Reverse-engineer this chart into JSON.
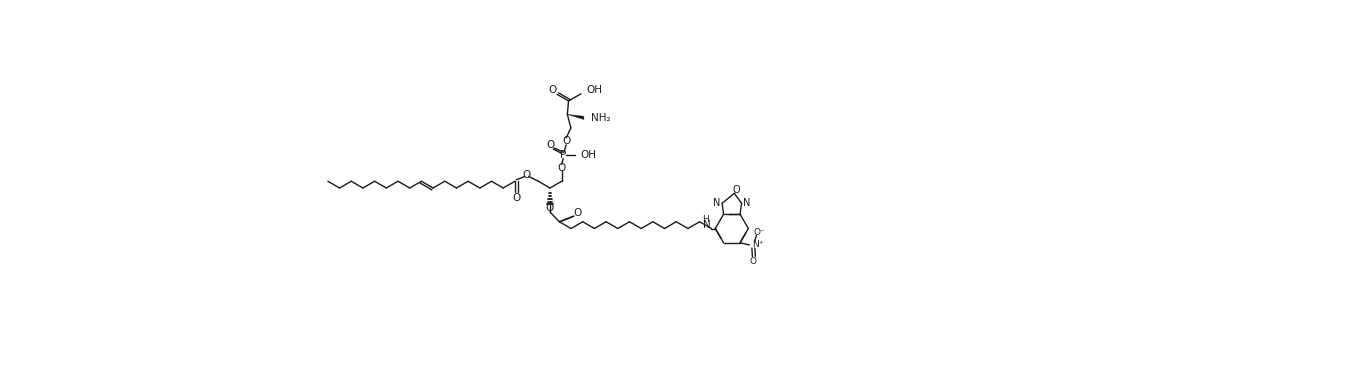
{
  "bg_color": "#ffffff",
  "line_color": "#1a1a1a",
  "line_width": 1.0,
  "font_size": 7.5,
  "figsize": [
    13.72,
    3.78
  ],
  "dpi": 100,
  "xlim": [
    0,
    137.2
  ],
  "ylim": [
    0,
    37.8
  ]
}
